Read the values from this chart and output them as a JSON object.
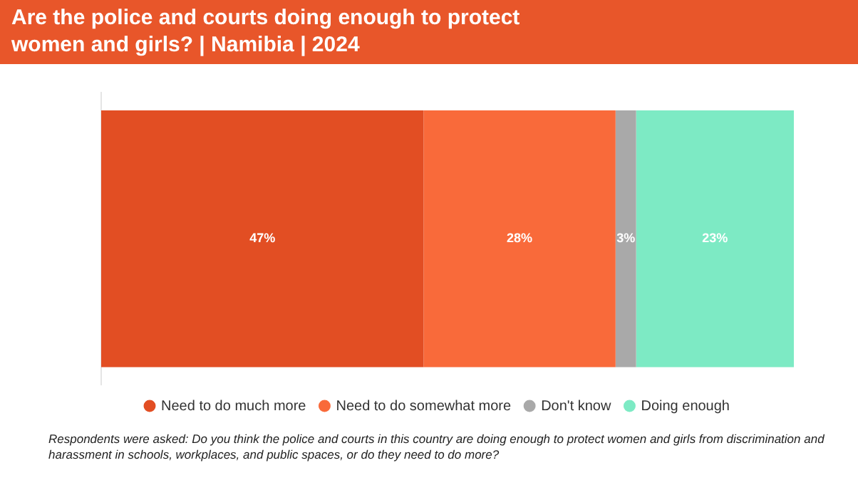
{
  "chart_data": {
    "type": "bar",
    "title": "Are the police and courts doing enough to protect women and girls? | Namibia | 2024",
    "orientation": "horizontal",
    "stacked": true,
    "categories": [
      null
    ],
    "xlim": [
      0,
      101
    ],
    "legend": "bottom",
    "series": [
      {
        "name": "Need to do much more",
        "color": "#e24e23",
        "values": [
          47
        ],
        "value_labels": [
          "47%"
        ]
      },
      {
        "name": "Need to do somewhat more",
        "color": "#f96a3a",
        "values": [
          28
        ],
        "value_labels": [
          "28%"
        ]
      },
      {
        "name": "Don't know",
        "color": "#a9a9a9",
        "values": [
          3
        ],
        "value_labels": [
          "3%"
        ]
      },
      {
        "name": "Doing enough",
        "color": "#7deac4",
        "values": [
          23
        ],
        "value_labels": [
          "23%"
        ]
      }
    ],
    "annotations": [
      "Respondents were asked: Do you think the police and courts in this country are doing enough to protect women and girls from discrimination and harassment in schools, workplaces, and public spaces, or do they need to do more?"
    ]
  }
}
